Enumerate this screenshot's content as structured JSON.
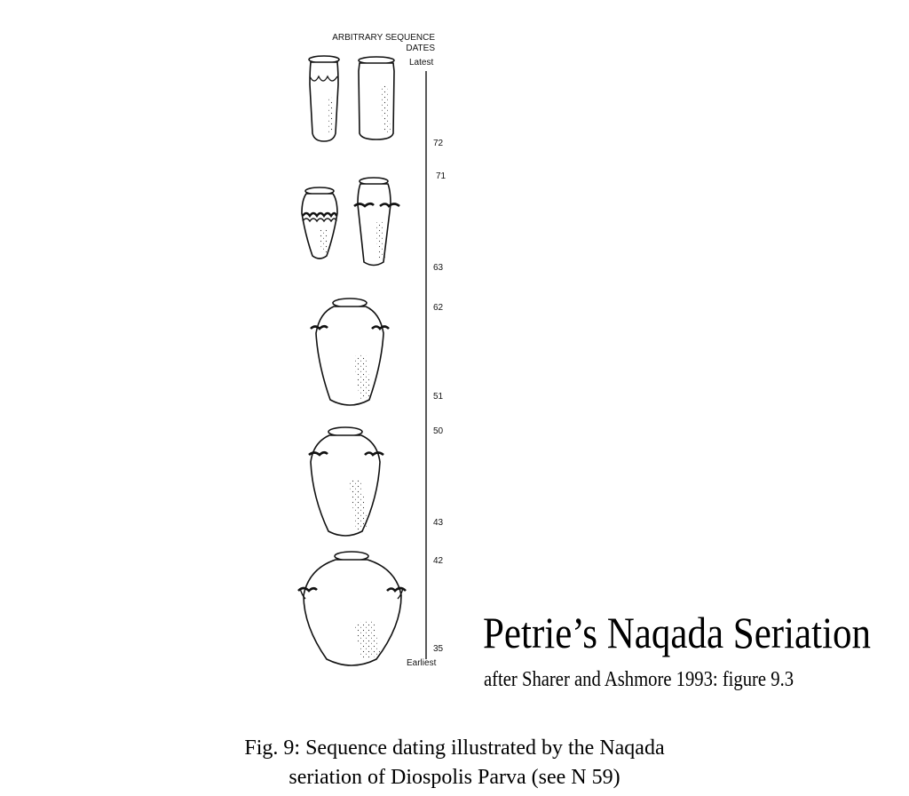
{
  "figure": {
    "axis_header_line1": "ARBITRARY  SEQUENCE",
    "axis_header_line2": "DATES",
    "top_label": "Latest",
    "bottom_label": "Earliest",
    "ticks": [
      "72",
      "71",
      "63",
      "62",
      "51",
      "50",
      "43",
      "42",
      "35"
    ],
    "title": "Petrie’s Naqada Seriation",
    "subtitle": "after Sharer and Ashmore 1993: figure 9.3",
    "caption_line1": "Fig. 9: Sequence dating illustrated by the Naqada",
    "caption_line2": "seriation of Diospolis Parva (see N 59)"
  },
  "pottery_stages": [
    {
      "range": "72 - Latest",
      "vessels": [
        "tall-cylindrical-jar-with-scalloped-band",
        "tall-cylindrical-jar"
      ]
    },
    {
      "range": "63 - 71",
      "vessels": [
        "jar-with-twisted-rope-band",
        "jar-with-wavy-ledge-handles"
      ]
    },
    {
      "range": "51 - 62",
      "vessels": [
        "ovoid-jar-with-wavy-handles"
      ]
    },
    {
      "range": "43 - 50",
      "vessels": [
        "ovoid-jar-with-wavy-handles"
      ]
    },
    {
      "range": "35 - 42",
      "vessels": [
        "globular-jar-with-wavy-handles"
      ]
    }
  ]
}
